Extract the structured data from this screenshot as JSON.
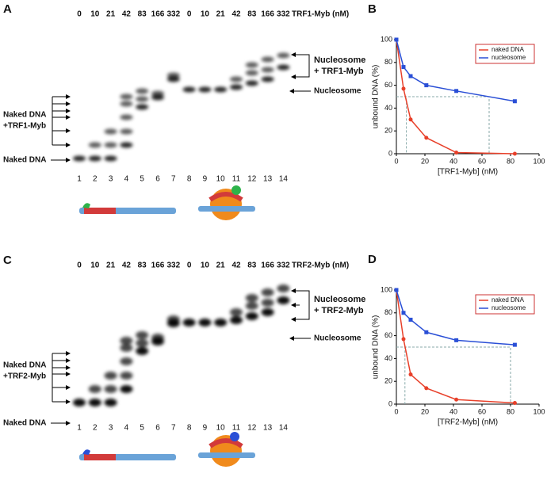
{
  "chart_data": [
    {
      "type": "line",
      "panel": "B",
      "ylabel": "unbound DNA (%)",
      "xlabel": "[TRF1-Myb] (nM)",
      "x": [
        0,
        5,
        10,
        21,
        42,
        83
      ],
      "xlim": [
        0,
        100
      ],
      "xticks": [
        0,
        20,
        40,
        60,
        80,
        100
      ],
      "ylim": [
        0,
        100
      ],
      "yticks": [
        0,
        20,
        40,
        60,
        80,
        100
      ],
      "legend": "top-right",
      "reference_lines": {
        "y": 50,
        "x": [
          7,
          65
        ]
      },
      "series": [
        {
          "name": "naked DNA",
          "color": "#e8402a",
          "values": [
            100,
            57,
            30,
            14,
            1,
            0
          ]
        },
        {
          "name": "nucleosome",
          "color": "#2a4fd6",
          "values": [
            100,
            76,
            68,
            60,
            55,
            46
          ]
        }
      ]
    },
    {
      "type": "line",
      "panel": "D",
      "ylabel": "unbound DNA (%)",
      "xlabel": "[TRF2-Myb] (nM)",
      "x": [
        0,
        5,
        10,
        21,
        42,
        83
      ],
      "xlim": [
        0,
        100
      ],
      "xticks": [
        0,
        20,
        40,
        60,
        80,
        100
      ],
      "ylim": [
        0,
        100
      ],
      "yticks": [
        0,
        20,
        40,
        60,
        80,
        100
      ],
      "legend": "top-right",
      "reference_lines": {
        "y": 50,
        "x": [
          6,
          80
        ]
      },
      "series": [
        {
          "name": "naked DNA",
          "color": "#e8402a",
          "values": [
            100,
            57,
            26,
            14,
            4,
            1
          ]
        },
        {
          "name": "nucleosome",
          "color": "#2a4fd6",
          "values": [
            100,
            80,
            74,
            63,
            56,
            52
          ]
        }
      ]
    }
  ],
  "gels": [
    {
      "panel": "A",
      "concentrations": [
        0,
        10,
        21,
        42,
        83,
        166,
        332,
        0,
        10,
        21,
        42,
        83,
        166,
        332
      ],
      "unit_label": "TRF1-Myb (nM)",
      "lanes": [
        1,
        2,
        3,
        4,
        5,
        6,
        7,
        8,
        9,
        10,
        11,
        12,
        13,
        14
      ],
      "naked_label": "Naked DNA",
      "naked_complex_label": [
        "Naked DNA",
        "+TRF1-Myb"
      ],
      "nucleosome_label": "Nucleosome",
      "nucleosome_complex_label": [
        "Nucleosome",
        "+ TRF1-Myb"
      ]
    },
    {
      "panel": "C",
      "concentrations": [
        0,
        10,
        21,
        42,
        83,
        166,
        332,
        0,
        10,
        21,
        42,
        83,
        166,
        332
      ],
      "unit_label": "TRF2-Myb (nM)",
      "lanes": [
        1,
        2,
        3,
        4,
        5,
        6,
        7,
        8,
        9,
        10,
        11,
        12,
        13,
        14
      ],
      "naked_label": "Naked DNA",
      "naked_complex_label": [
        "Naked DNA",
        "+TRF2-Myb"
      ],
      "nucleosome_label": "Nucleosome",
      "nucleosome_complex_label": [
        "Nucleosome",
        "+ TRF2-Myb"
      ]
    }
  ]
}
